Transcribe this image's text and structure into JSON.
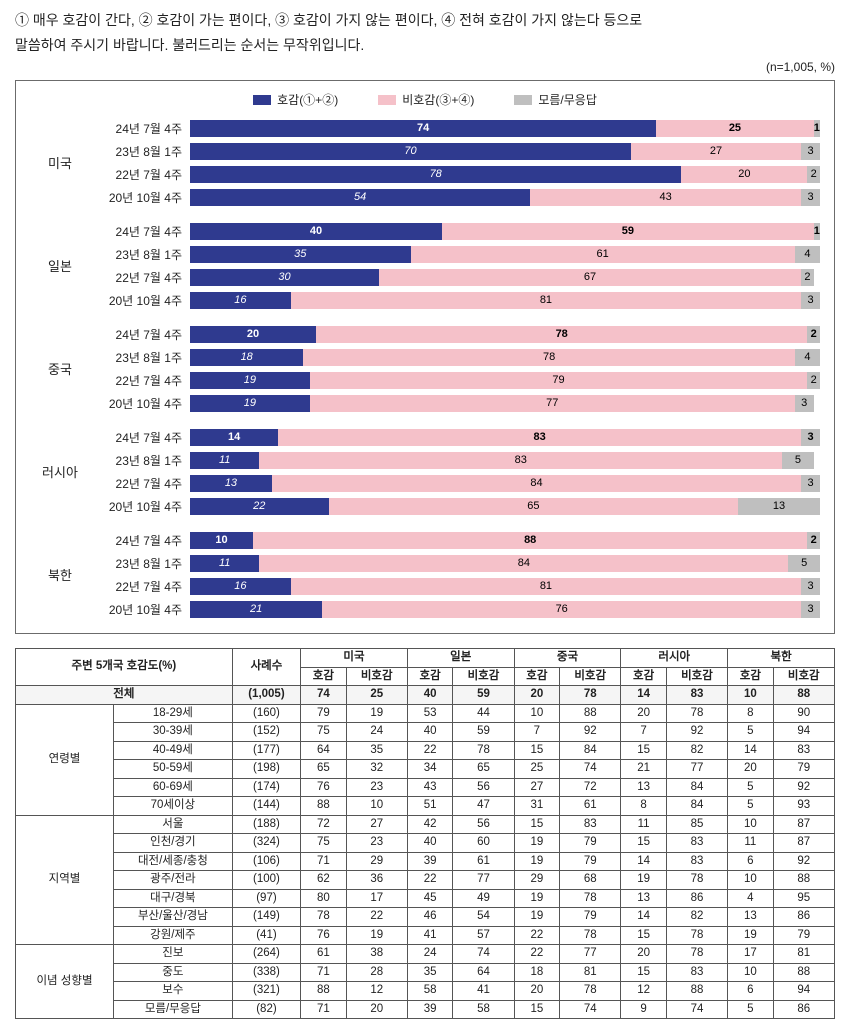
{
  "intro_line1": "① 매우 호감이 간다, ② 호감이 가는 편이다, ③ 호감이 가지 않는 편이다, ④ 전혀 호감이 가지 않는다 등으로",
  "intro_line2": "말씀하여 주시기 바랍니다. 불러드리는 순서는 무작위입니다.",
  "n_note": "(n=1,005, %)",
  "legend": {
    "fav": "호감(①+②)",
    "unfav": "비호감(③+④)",
    "dk": "모름/무응답"
  },
  "colors": {
    "fav": "#2f3a8f",
    "unfav": "#f5c1c9",
    "dk": "#bfbfbf",
    "border": "#6b6b6b",
    "text": "#222222"
  },
  "chart": {
    "max": 100,
    "groups": [
      {
        "country": "미국",
        "rows": [
          {
            "period": "24년 7월 4주",
            "fav": 74,
            "unfav": 25,
            "dk": 1,
            "current": true
          },
          {
            "period": "23년 8월 1주",
            "fav": 70,
            "unfav": 27,
            "dk": 3
          },
          {
            "period": "22년 7월 4주",
            "fav": 78,
            "unfav": 20,
            "dk": 2
          },
          {
            "period": "20년 10월 4주",
            "fav": 54,
            "unfav": 43,
            "dk": 3
          }
        ]
      },
      {
        "country": "일본",
        "rows": [
          {
            "period": "24년 7월 4주",
            "fav": 40,
            "unfav": 59,
            "dk": 1,
            "current": true
          },
          {
            "period": "23년 8월 1주",
            "fav": 35,
            "unfav": 61,
            "dk": 4
          },
          {
            "period": "22년 7월 4주",
            "fav": 30,
            "unfav": 67,
            "dk": 2
          },
          {
            "period": "20년 10월 4주",
            "fav": 16,
            "unfav": 81,
            "dk": 3
          }
        ]
      },
      {
        "country": "중국",
        "rows": [
          {
            "period": "24년 7월 4주",
            "fav": 20,
            "unfav": 78,
            "dk": 2,
            "current": true
          },
          {
            "period": "23년 8월 1주",
            "fav": 18,
            "unfav": 78,
            "dk": 4
          },
          {
            "period": "22년 7월 4주",
            "fav": 19,
            "unfav": 79,
            "dk": 2
          },
          {
            "period": "20년 10월 4주",
            "fav": 19,
            "unfav": 77,
            "dk": 3
          }
        ]
      },
      {
        "country": "러시아",
        "rows": [
          {
            "period": "24년 7월 4주",
            "fav": 14,
            "unfav": 83,
            "dk": 3,
            "current": true
          },
          {
            "period": "23년 8월 1주",
            "fav": 11,
            "unfav": 83,
            "dk": 5
          },
          {
            "period": "22년 7월 4주",
            "fav": 13,
            "unfav": 84,
            "dk": 3
          },
          {
            "period": "20년 10월 4주",
            "fav": 22,
            "unfav": 65,
            "dk": 13
          }
        ]
      },
      {
        "country": "북한",
        "rows": [
          {
            "period": "24년 7월 4주",
            "fav": 10,
            "unfav": 88,
            "dk": 2,
            "current": true
          },
          {
            "period": "23년 8월 1주",
            "fav": 11,
            "unfav": 84,
            "dk": 5
          },
          {
            "period": "22년 7월 4주",
            "fav": 16,
            "unfav": 81,
            "dk": 3
          },
          {
            "period": "20년 10월 4주",
            "fav": 21,
            "unfav": 76,
            "dk": 3
          }
        ]
      }
    ]
  },
  "table": {
    "title": "주변 5개국 호감도(%)",
    "sample_header": "사례수",
    "countries": [
      "미국",
      "일본",
      "중국",
      "러시아",
      "북한"
    ],
    "sub_headers": [
      "호감",
      "비호감"
    ],
    "total_label": "전체",
    "total_sample": "(1,005)",
    "total_values": [
      74,
      25,
      40,
      59,
      20,
      78,
      14,
      83,
      10,
      88
    ],
    "groups": [
      {
        "group_label": "연령별",
        "rows": [
          {
            "label": "18-29세",
            "sample": "(160)",
            "v": [
              79,
              19,
              53,
              44,
              10,
              88,
              20,
              78,
              8,
              90
            ]
          },
          {
            "label": "30-39세",
            "sample": "(152)",
            "v": [
              75,
              24,
              40,
              59,
              7,
              92,
              7,
              92,
              5,
              94
            ]
          },
          {
            "label": "40-49세",
            "sample": "(177)",
            "v": [
              64,
              35,
              22,
              78,
              15,
              84,
              15,
              82,
              14,
              83
            ]
          },
          {
            "label": "50-59세",
            "sample": "(198)",
            "v": [
              65,
              32,
              34,
              65,
              25,
              74,
              21,
              77,
              20,
              79
            ]
          },
          {
            "label": "60-69세",
            "sample": "(174)",
            "v": [
              76,
              23,
              43,
              56,
              27,
              72,
              13,
              84,
              5,
              92
            ]
          },
          {
            "label": "70세이상",
            "sample": "(144)",
            "v": [
              88,
              10,
              51,
              47,
              31,
              61,
              8,
              84,
              5,
              93
            ]
          }
        ]
      },
      {
        "group_label": "지역별",
        "rows": [
          {
            "label": "서울",
            "sample": "(188)",
            "v": [
              72,
              27,
              42,
              56,
              15,
              83,
              11,
              85,
              10,
              87
            ]
          },
          {
            "label": "인천/경기",
            "sample": "(324)",
            "v": [
              75,
              23,
              40,
              60,
              19,
              79,
              15,
              83,
              11,
              87
            ]
          },
          {
            "label": "대전/세종/충청",
            "sample": "(106)",
            "v": [
              71,
              29,
              39,
              61,
              19,
              79,
              14,
              83,
              6,
              92
            ]
          },
          {
            "label": "광주/전라",
            "sample": "(100)",
            "v": [
              62,
              36,
              22,
              77,
              29,
              68,
              19,
              78,
              10,
              88
            ]
          },
          {
            "label": "대구/경북",
            "sample": "(97)",
            "v": [
              80,
              17,
              45,
              49,
              19,
              78,
              13,
              86,
              4,
              95
            ]
          },
          {
            "label": "부산/울산/경남",
            "sample": "(149)",
            "v": [
              78,
              22,
              46,
              54,
              19,
              79,
              14,
              82,
              13,
              86
            ]
          },
          {
            "label": "강원/제주",
            "sample": "(41)",
            "v": [
              76,
              19,
              41,
              57,
              22,
              78,
              15,
              78,
              19,
              79
            ]
          }
        ]
      },
      {
        "group_label": "이념 성향별",
        "rows": [
          {
            "label": "진보",
            "sample": "(264)",
            "v": [
              61,
              38,
              24,
              74,
              22,
              77,
              20,
              78,
              17,
              81
            ]
          },
          {
            "label": "중도",
            "sample": "(338)",
            "v": [
              71,
              28,
              35,
              64,
              18,
              81,
              15,
              83,
              10,
              88
            ]
          },
          {
            "label": "보수",
            "sample": "(321)",
            "v": [
              88,
              12,
              58,
              41,
              20,
              78,
              12,
              88,
              6,
              94
            ]
          },
          {
            "label": "모름/무응답",
            "sample": "(82)",
            "v": [
              71,
              20,
              39,
              58,
              15,
              74,
              9,
              74,
              5,
              86
            ]
          }
        ]
      }
    ]
  }
}
